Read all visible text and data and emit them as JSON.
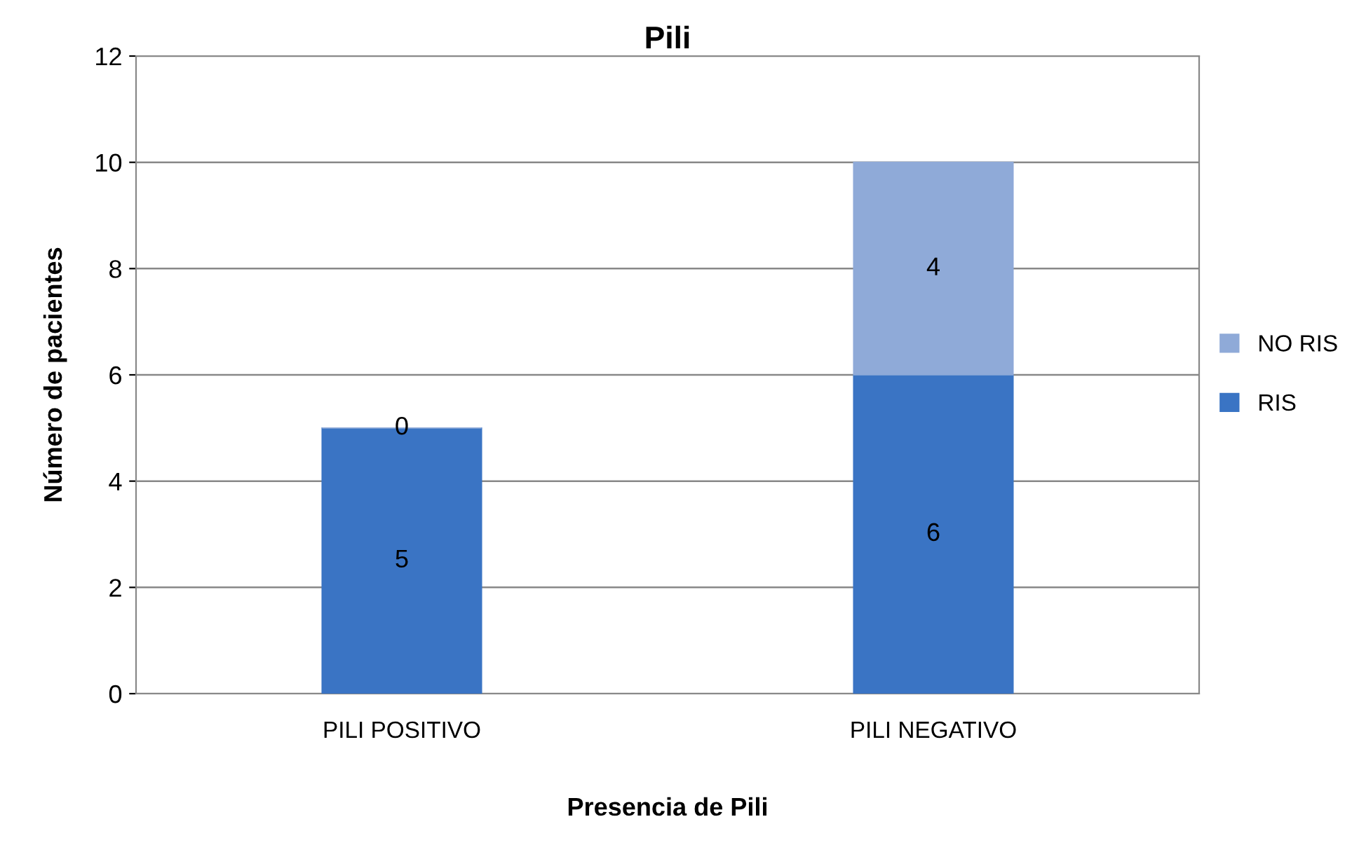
{
  "chart_data": {
    "type": "bar",
    "title": "Pili",
    "xlabel": "Presencia de Pili",
    "ylabel": "Número de pacientes",
    "categories": [
      "PILI POSITIVO",
      "PILI NEGATIVO"
    ],
    "series": [
      {
        "name": "RIS",
        "color": "#3a74c4",
        "values": [
          5,
          6
        ]
      },
      {
        "name": "NO RIS",
        "color": "#8faad8",
        "values": [
          0,
          4
        ]
      }
    ],
    "stacked": true,
    "ylim": [
      0,
      12
    ],
    "yticks": [
      0,
      2,
      4,
      6,
      8,
      10,
      12
    ],
    "grid": "y",
    "legend": "right",
    "data_labels": true
  }
}
